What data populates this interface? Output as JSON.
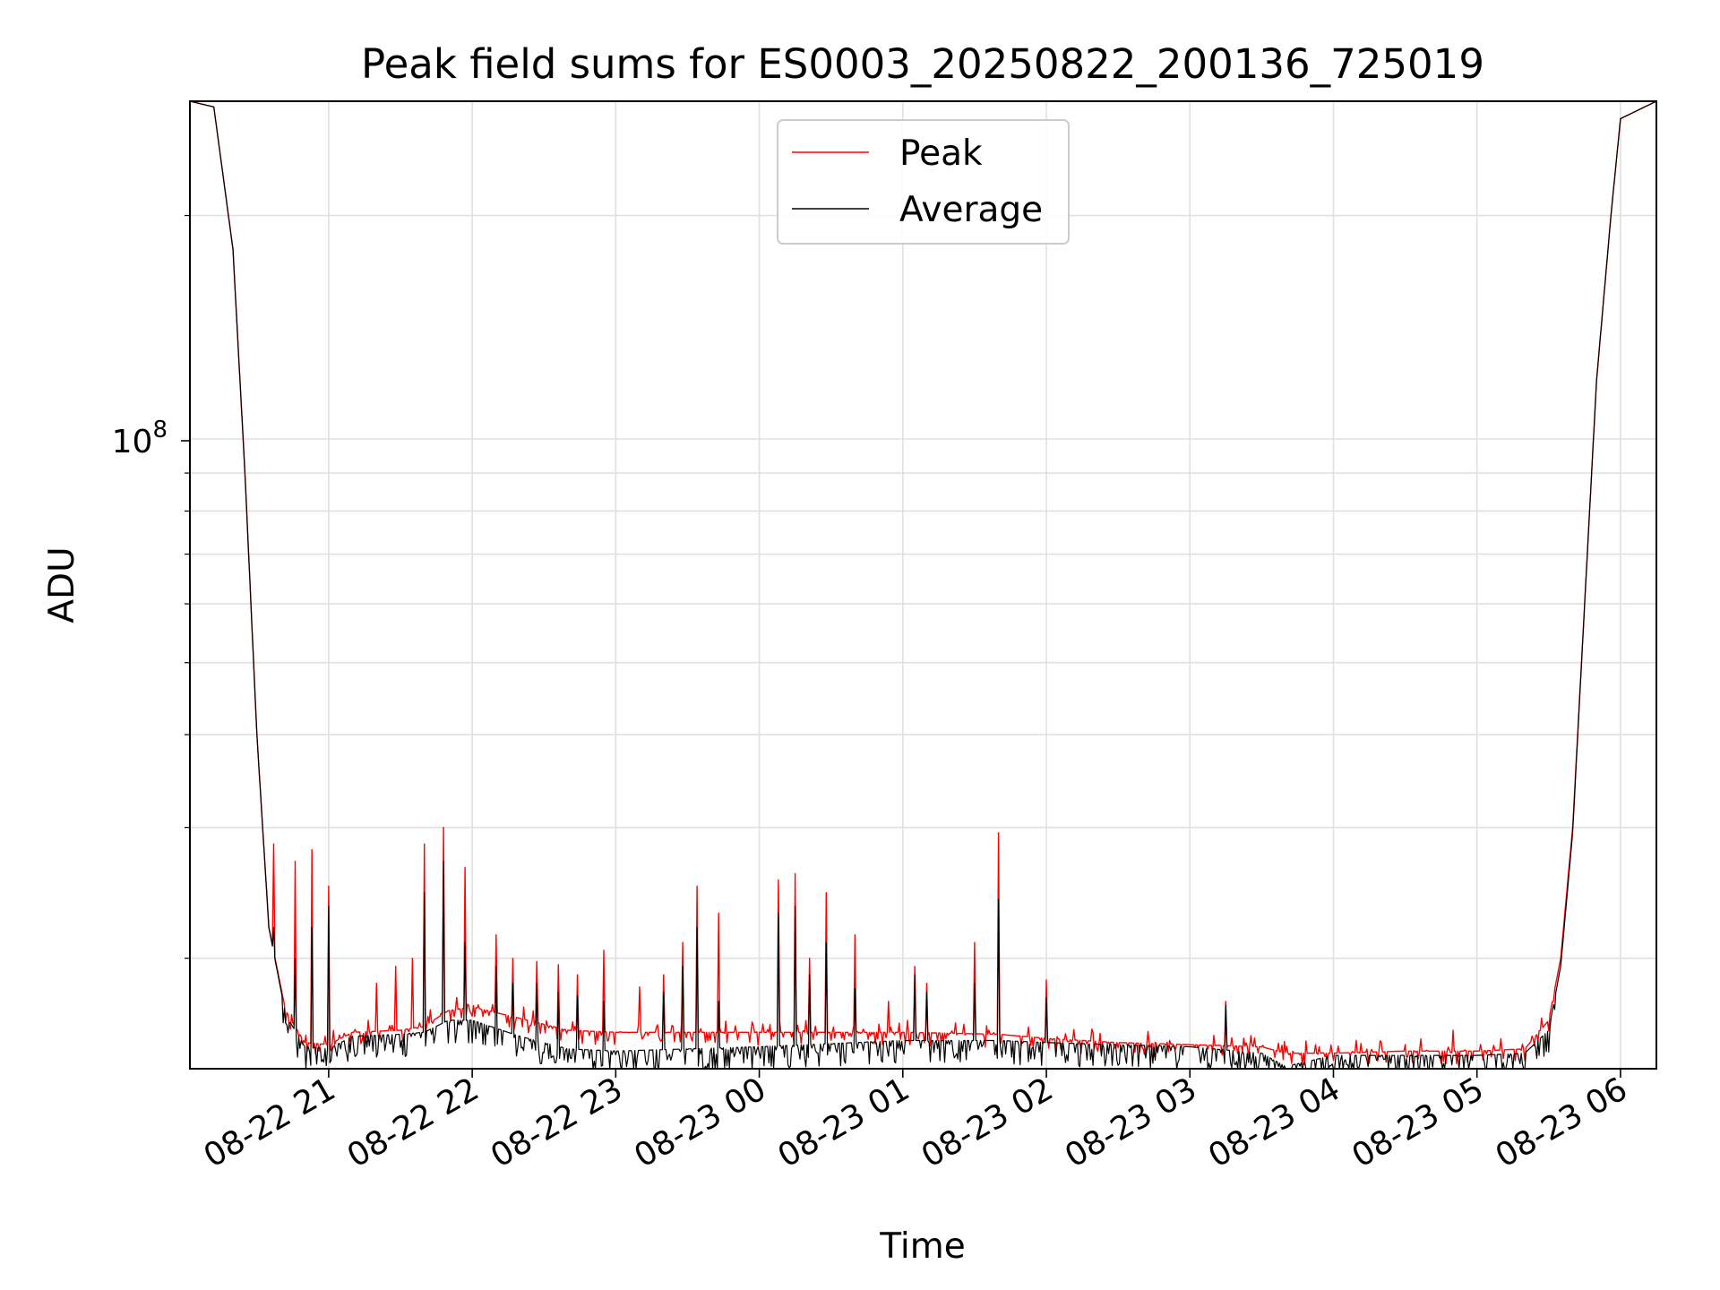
{
  "chart_data": {
    "type": "line",
    "title": "Peak field sums for ES0003_20250822_200136_725019",
    "xlabel": "Time",
    "ylabel": "ADU",
    "yscale": "log",
    "grid": true,
    "legend_position": "top-center",
    "x_ticks": [
      "08-22 21",
      "08-22 22",
      "08-22 23",
      "08-23 00",
      "08-23 01",
      "08-23 02",
      "08-23 03",
      "08-23 04",
      "08-23 05",
      "08-23 06"
    ],
    "y_major_tick": {
      "value": 100000000,
      "base": "10",
      "exponent": "8"
    },
    "xlim": [
      "2025-08-22 20:02",
      "2025-08-23 06:15"
    ],
    "ylim": [
      14200000,
      285000000
    ],
    "series": [
      {
        "name": "Peak",
        "color": "#ff0000",
        "baseline": [
          [
            "2025-08-22 20:02",
            285000000
          ],
          [
            "2025-08-22 20:12",
            280000000
          ],
          [
            "2025-08-22 20:20",
            180000000
          ],
          [
            "2025-08-22 20:25",
            90000000
          ],
          [
            "2025-08-22 20:30",
            40000000
          ],
          [
            "2025-08-22 20:35",
            22000000
          ],
          [
            "2025-08-22 20:42",
            17000000
          ],
          [
            "2025-08-22 20:50",
            15400000
          ],
          [
            "2025-08-22 21:00",
            15300000
          ],
          [
            "2025-08-22 21:10",
            15900000
          ],
          [
            "2025-08-22 21:30",
            16000000
          ],
          [
            "2025-08-22 21:40",
            16200000
          ],
          [
            "2025-08-22 21:50",
            17000000
          ],
          [
            "2025-08-22 22:00",
            17200000
          ],
          [
            "2025-08-22 22:20",
            16600000
          ],
          [
            "2025-08-22 22:40",
            16000000
          ],
          [
            "2025-08-22 23:00",
            15900000
          ],
          [
            "2025-08-23 00:00",
            15900000
          ],
          [
            "2025-08-23 01:00",
            15900000
          ],
          [
            "2025-08-23 01:40",
            15800000
          ],
          [
            "2025-08-23 02:00",
            15600000
          ],
          [
            "2025-08-23 02:30",
            15400000
          ],
          [
            "2025-08-23 03:00",
            15300000
          ],
          [
            "2025-08-23 03:30",
            15200000
          ],
          [
            "2025-08-23 03:40",
            14900000
          ],
          [
            "2025-08-23 04:00",
            14900000
          ],
          [
            "2025-08-23 04:30",
            15000000
          ],
          [
            "2025-08-23 05:00",
            15000000
          ],
          [
            "2025-08-23 05:20",
            15100000
          ],
          [
            "2025-08-23 05:30",
            16500000
          ],
          [
            "2025-08-23 05:35",
            20000000
          ],
          [
            "2025-08-23 05:40",
            30000000
          ],
          [
            "2025-08-23 05:45",
            60000000
          ],
          [
            "2025-08-23 05:50",
            120000000
          ],
          [
            "2025-08-23 05:56",
            200000000
          ],
          [
            "2025-08-23 06:00",
            270000000
          ],
          [
            "2025-08-23 06:15",
            285000000
          ]
        ],
        "spikes": [
          [
            "2025-08-22 20:37",
            28500000
          ],
          [
            "2025-08-22 20:46",
            27000000
          ],
          [
            "2025-08-22 20:53",
            28000000
          ],
          [
            "2025-08-22 21:00",
            25000000
          ],
          [
            "2025-08-22 21:20",
            18500000
          ],
          [
            "2025-08-22 21:28",
            19500000
          ],
          [
            "2025-08-22 21:35",
            20000000
          ],
          [
            "2025-08-22 21:40",
            28500000
          ],
          [
            "2025-08-22 21:48",
            30000000
          ],
          [
            "2025-08-22 21:57",
            26500000
          ],
          [
            "2025-08-22 22:10",
            21500000
          ],
          [
            "2025-08-22 22:17",
            20000000
          ],
          [
            "2025-08-22 22:27",
            19800000
          ],
          [
            "2025-08-22 22:36",
            19600000
          ],
          [
            "2025-08-22 22:44",
            19000000
          ],
          [
            "2025-08-22 22:55",
            20500000
          ],
          [
            "2025-08-22 23:10",
            18300000
          ],
          [
            "2025-08-22 23:20",
            19000000
          ],
          [
            "2025-08-22 23:28",
            21000000
          ],
          [
            "2025-08-22 23:34",
            25000000
          ],
          [
            "2025-08-22 23:43",
            23000000
          ],
          [
            "2025-08-23 00:08",
            25500000
          ],
          [
            "2025-08-23 00:15",
            26000000
          ],
          [
            "2025-08-23 00:21",
            20000000
          ],
          [
            "2025-08-23 00:28",
            24500000
          ],
          [
            "2025-08-23 00:40",
            21500000
          ],
          [
            "2025-08-23 00:54",
            17500000
          ],
          [
            "2025-08-23 01:05",
            19500000
          ],
          [
            "2025-08-23 01:10",
            18500000
          ],
          [
            "2025-08-23 01:30",
            21000000
          ],
          [
            "2025-08-23 01:40",
            29500000
          ],
          [
            "2025-08-23 02:00",
            18700000
          ],
          [
            "2025-08-23 03:15",
            17500000
          ],
          [
            "2025-08-23 04:50",
            16000000
          ],
          [
            "2025-08-23 05:32",
            17500000
          ]
        ]
      },
      {
        "name": "Average",
        "color": "#000000",
        "baseline": [
          [
            "2025-08-22 20:02",
            285000000
          ],
          [
            "2025-08-22 20:12",
            280000000
          ],
          [
            "2025-08-22 20:20",
            180000000
          ],
          [
            "2025-08-22 20:25",
            90000000
          ],
          [
            "2025-08-22 20:30",
            40000000
          ],
          [
            "2025-08-22 20:35",
            22000000
          ],
          [
            "2025-08-22 20:42",
            16800000
          ],
          [
            "2025-08-22 20:50",
            15200000
          ],
          [
            "2025-08-22 21:00",
            15100000
          ],
          [
            "2025-08-22 21:10",
            15700000
          ],
          [
            "2025-08-22 21:30",
            15800000
          ],
          [
            "2025-08-22 21:40",
            15900000
          ],
          [
            "2025-08-22 21:50",
            16500000
          ],
          [
            "2025-08-22 22:00",
            16500000
          ],
          [
            "2025-08-22 22:20",
            15700000
          ],
          [
            "2025-08-22 22:40",
            15100000
          ],
          [
            "2025-08-22 23:00",
            15000000
          ],
          [
            "2025-08-23 00:00",
            15200000
          ],
          [
            "2025-08-23 01:00",
            15500000
          ],
          [
            "2025-08-23 01:40",
            15500000
          ],
          [
            "2025-08-23 02:00",
            15400000
          ],
          [
            "2025-08-23 02:30",
            15300000
          ],
          [
            "2025-08-23 03:00",
            15200000
          ],
          [
            "2025-08-23 03:30",
            14900000
          ],
          [
            "2025-08-23 03:40",
            14300000
          ],
          [
            "2025-08-23 04:00",
            14800000
          ],
          [
            "2025-08-23 04:30",
            14800000
          ],
          [
            "2025-08-23 05:00",
            14800000
          ],
          [
            "2025-08-23 05:20",
            14900000
          ],
          [
            "2025-08-23 05:30",
            16000000
          ],
          [
            "2025-08-23 05:35",
            19500000
          ],
          [
            "2025-08-23 05:40",
            29500000
          ],
          [
            "2025-08-23 05:45",
            60000000
          ],
          [
            "2025-08-23 05:50",
            120000000
          ],
          [
            "2025-08-23 05:56",
            200000000
          ],
          [
            "2025-08-23 06:00",
            270000000
          ],
          [
            "2025-08-23 06:15",
            285000000
          ]
        ],
        "spikes": [
          [
            "2025-08-22 20:37",
            22000000
          ],
          [
            "2025-08-22 20:46",
            20000000
          ],
          [
            "2025-08-22 20:53",
            22000000
          ],
          [
            "2025-08-22 21:00",
            23500000
          ],
          [
            "2025-08-22 21:40",
            24500000
          ],
          [
            "2025-08-22 21:48",
            27000000
          ],
          [
            "2025-08-22 21:57",
            21000000
          ],
          [
            "2025-08-22 22:10",
            19500000
          ],
          [
            "2025-08-22 22:17",
            18500000
          ],
          [
            "2025-08-22 22:27",
            18500000
          ],
          [
            "2025-08-22 22:36",
            18000000
          ],
          [
            "2025-08-22 22:44",
            17800000
          ],
          [
            "2025-08-22 22:55",
            17500000
          ],
          [
            "2025-08-22 23:20",
            18000000
          ],
          [
            "2025-08-22 23:28",
            19500000
          ],
          [
            "2025-08-22 23:34",
            22000000
          ],
          [
            "2025-08-22 23:43",
            17500000
          ],
          [
            "2025-08-23 00:08",
            23000000
          ],
          [
            "2025-08-23 00:15",
            23500000
          ],
          [
            "2025-08-23 00:21",
            19000000
          ],
          [
            "2025-08-23 00:28",
            21000000
          ],
          [
            "2025-08-23 00:40",
            18200000
          ],
          [
            "2025-08-23 01:05",
            19000000
          ],
          [
            "2025-08-23 01:10",
            18000000
          ],
          [
            "2025-08-23 01:30",
            18500000
          ],
          [
            "2025-08-23 01:40",
            24000000
          ],
          [
            "2025-08-23 02:00",
            17700000
          ],
          [
            "2025-08-23 03:15",
            17300000
          ]
        ]
      }
    ]
  }
}
